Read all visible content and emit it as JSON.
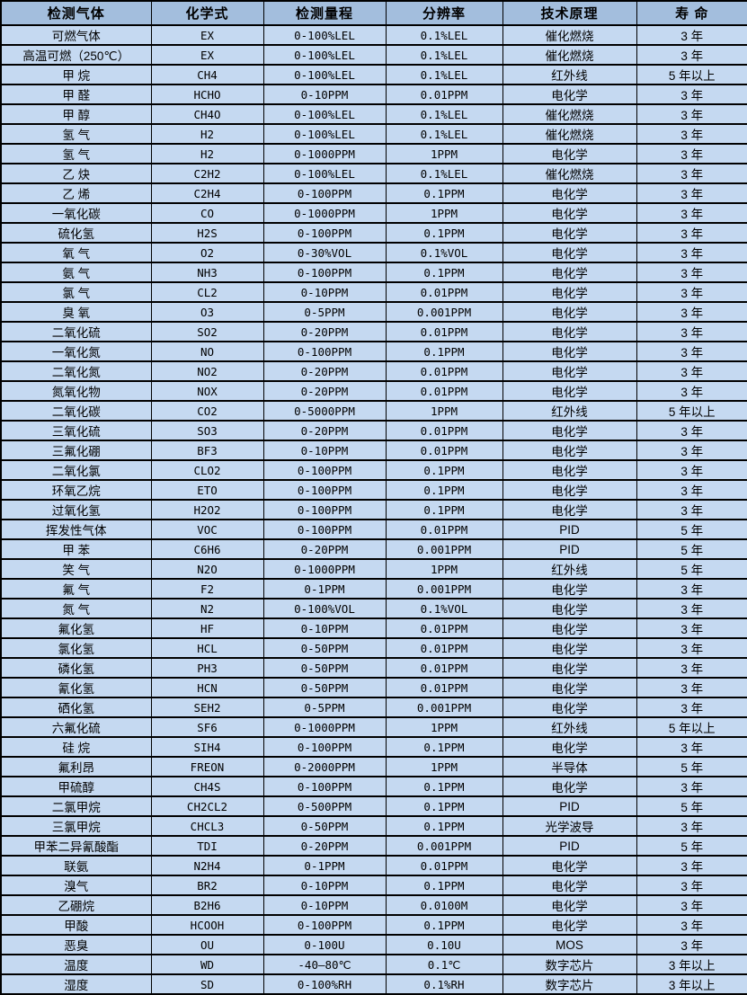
{
  "colors": {
    "header_bg": "#a3bedd",
    "row_bg": "#c5d9f1",
    "border": "#000000",
    "text": "#000000"
  },
  "table": {
    "headers": [
      "检测气体",
      "化学式",
      "检测量程",
      "分辨率",
      "技术原理",
      "寿 命"
    ],
    "rows": [
      [
        "可燃气体",
        "EX",
        "0-100%LEL",
        "0.1%LEL",
        "催化燃烧",
        "3 年"
      ],
      [
        "高温可燃（250℃）",
        "EX",
        "0-100%LEL",
        "0.1%LEL",
        "催化燃烧",
        "3 年"
      ],
      [
        "甲 烷",
        "CH4",
        "0-100%LEL",
        "0.1%LEL",
        "红外线",
        "5 年以上"
      ],
      [
        "甲 醛",
        "HCHO",
        "0-10PPM",
        "0.01PPM",
        "电化学",
        "3 年"
      ],
      [
        "甲 醇",
        "CH4O",
        "0-100%LEL",
        "0.1%LEL",
        "催化燃烧",
        "3 年"
      ],
      [
        "氢 气",
        "H2",
        "0-100%LEL",
        "0.1%LEL",
        "催化燃烧",
        "3 年"
      ],
      [
        "氢 气",
        "H2",
        "0-1000PPM",
        "1PPM",
        "电化学",
        "3 年"
      ],
      [
        "乙 炔",
        "C2H2",
        "0-100%LEL",
        "0.1%LEL",
        "催化燃烧",
        "3 年"
      ],
      [
        "乙 烯",
        "C2H4",
        "0-100PPM",
        "0.1PPM",
        "电化学",
        "3 年"
      ],
      [
        "一氧化碳",
        "CO",
        "0-1000PPM",
        "1PPM",
        "电化学",
        "3 年"
      ],
      [
        "硫化氢",
        "H2S",
        "0-100PPM",
        "0.1PPM",
        "电化学",
        "3 年"
      ],
      [
        "氧 气",
        "O2",
        "0-30%VOL",
        "0.1%VOL",
        "电化学",
        "3 年"
      ],
      [
        "氨 气",
        "NH3",
        "0-100PPM",
        "0.1PPM",
        "电化学",
        "3 年"
      ],
      [
        "氯 气",
        "CL2",
        "0-10PPM",
        "0.01PPM",
        "电化学",
        "3 年"
      ],
      [
        "臭 氧",
        "O3",
        "0-5PPM",
        "0.001PPM",
        "电化学",
        "3 年"
      ],
      [
        "二氧化硫",
        "SO2",
        "0-20PPM",
        "0.01PPM",
        "电化学",
        "3 年"
      ],
      [
        "一氧化氮",
        "NO",
        "0-100PPM",
        "0.1PPM",
        "电化学",
        "3 年"
      ],
      [
        "二氧化氮",
        "NO2",
        "0-20PPM",
        "0.01PPM",
        "电化学",
        "3 年"
      ],
      [
        "氮氧化物",
        "NOX",
        "0-20PPM",
        "0.01PPM",
        "电化学",
        "3 年"
      ],
      [
        "二氧化碳",
        "CO2",
        "0-5000PPM",
        "1PPM",
        "红外线",
        "5 年以上"
      ],
      [
        "三氧化硫",
        "SO3",
        "0-20PPM",
        "0.01PPM",
        "电化学",
        "3 年"
      ],
      [
        "三氟化硼",
        "BF3",
        "0-10PPM",
        "0.01PPM",
        "电化学",
        "3 年"
      ],
      [
        "二氧化氯",
        "CLO2",
        "0-100PPM",
        "0.1PPM",
        "电化学",
        "3 年"
      ],
      [
        "环氧乙烷",
        "ETO",
        "0-100PPM",
        "0.1PPM",
        "电化学",
        "3 年"
      ],
      [
        "过氧化氢",
        "H2O2",
        "0-100PPM",
        "0.1PPM",
        "电化学",
        "3 年"
      ],
      [
        "挥发性气体",
        "VOC",
        "0-100PPM",
        "0.01PPM",
        "PID",
        "5 年"
      ],
      [
        "甲 苯",
        "C6H6",
        "0-20PPM",
        "0.001PPM",
        "PID",
        "5 年"
      ],
      [
        "笑 气",
        "N2O",
        "0-1000PPM",
        "1PPM",
        "红外线",
        "5 年"
      ],
      [
        "氟 气",
        "F2",
        "0-1PPM",
        "0.001PPM",
        "电化学",
        "3 年"
      ],
      [
        "氮 气",
        "N2",
        "0-100%VOL",
        "0.1%VOL",
        "电化学",
        "3 年"
      ],
      [
        "氟化氢",
        "HF",
        "0-10PPM",
        "0.01PPM",
        "电化学",
        "3 年"
      ],
      [
        "氯化氢",
        "HCL",
        "0-50PPM",
        "0.01PPM",
        "电化学",
        "3 年"
      ],
      [
        "磷化氢",
        "PH3",
        "0-50PPM",
        "0.01PPM",
        "电化学",
        "3 年"
      ],
      [
        "氰化氢",
        "HCN",
        "0-50PPM",
        "0.01PPM",
        "电化学",
        "3 年"
      ],
      [
        "硒化氢",
        "SEH2",
        "0-5PPM",
        "0.001PPM",
        "电化学",
        "3 年"
      ],
      [
        "六氟化硫",
        "SF6",
        "0-1000PPM",
        "1PPM",
        "红外线",
        "5 年以上"
      ],
      [
        "硅 烷",
        "SIH4",
        "0-100PPM",
        "0.1PPM",
        "电化学",
        "3 年"
      ],
      [
        "氟利昂",
        "FREON",
        "0-2000PPM",
        "1PPM",
        "半导体",
        "5 年"
      ],
      [
        "甲硫醇",
        "CH4S",
        "0-100PPM",
        "0.1PPM",
        "电化学",
        "3 年"
      ],
      [
        "二氯甲烷",
        "CH2CL2",
        "0-500PPM",
        "0.1PPM",
        "PID",
        "5 年"
      ],
      [
        "三氯甲烷",
        "CHCL3",
        "0-50PPM",
        "0.1PPM",
        "光学波导",
        "3 年"
      ],
      [
        "甲苯二异氰酸酯",
        "TDI",
        "0-20PPM",
        "0.001PPM",
        "PID",
        "5 年"
      ],
      [
        "联氨",
        "N2H4",
        "0-1PPM",
        "0.01PPM",
        "电化学",
        "3 年"
      ],
      [
        "溴气",
        "BR2",
        "0-10PPM",
        "0.1PPM",
        "电化学",
        "3 年"
      ],
      [
        "乙硼烷",
        "B2H6",
        "0-10PPM",
        "0.0100M",
        "电化学",
        "3 年"
      ],
      [
        "甲酸",
        "HCOOH",
        "0-100PPM",
        "0.1PPM",
        "电化学",
        "3 年"
      ],
      [
        "恶臭",
        "OU",
        "0-100U",
        "0.10U",
        "MOS",
        "3 年"
      ],
      [
        "温度",
        "WD",
        "-40—80℃",
        "0.1℃",
        "数字芯片",
        "3 年以上"
      ],
      [
        "湿度",
        "SD",
        "0-100%RH",
        "0.1%RH",
        "数字芯片",
        "3 年以上"
      ]
    ]
  }
}
